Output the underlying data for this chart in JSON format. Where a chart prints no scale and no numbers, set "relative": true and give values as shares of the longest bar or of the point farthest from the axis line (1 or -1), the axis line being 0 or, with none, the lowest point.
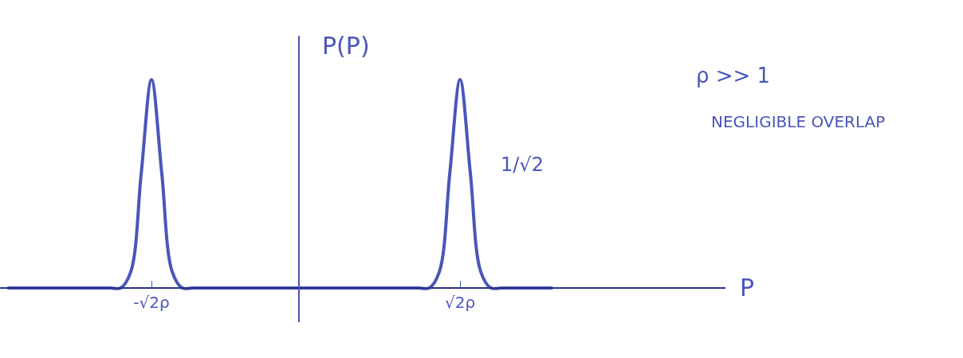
{
  "chart_data": {
    "type": "line",
    "relative": true,
    "ylabel": "P(P)",
    "categories": [
      null,
      null,
      null,
      null,
      null,
      null,
      null,
      null,
      null,
      null,
      null,
      null,
      null,
      null,
      "-√2ρ",
      null,
      null,
      null,
      null,
      null,
      null,
      null,
      null,
      null,
      null,
      null,
      null,
      null,
      null,
      null,
      null,
      null,
      null,
      null,
      null,
      null,
      null,
      null,
      null,
      null,
      null,
      null,
      null,
      null,
      "√2ρ",
      null,
      null,
      null,
      null,
      null,
      null,
      null,
      null,
      null
    ],
    "series": [
      {
        "color": "#4a56b8",
        "values": [
          0,
          0,
          0,
          0,
          0,
          0,
          0,
          0,
          0,
          0,
          0,
          0,
          0.08,
          0.55,
          1,
          0.55,
          0.08,
          0,
          0,
          0,
          0,
          0,
          0,
          0,
          0,
          0,
          0,
          0,
          0,
          0,
          0,
          0,
          0,
          0,
          0,
          0,
          0,
          0,
          0,
          0,
          0,
          0,
          0.08,
          0.55,
          1,
          0.55,
          0.08,
          0,
          0,
          0,
          0,
          0,
          0,
          0
        ]
      }
    ],
    "annotations": [
      "ρ >> 1",
      "NEGLIGIBLE OVERLAP",
      "1/√2",
      "P"
    ],
    "marker": "none",
    "line_style": "solid"
  }
}
